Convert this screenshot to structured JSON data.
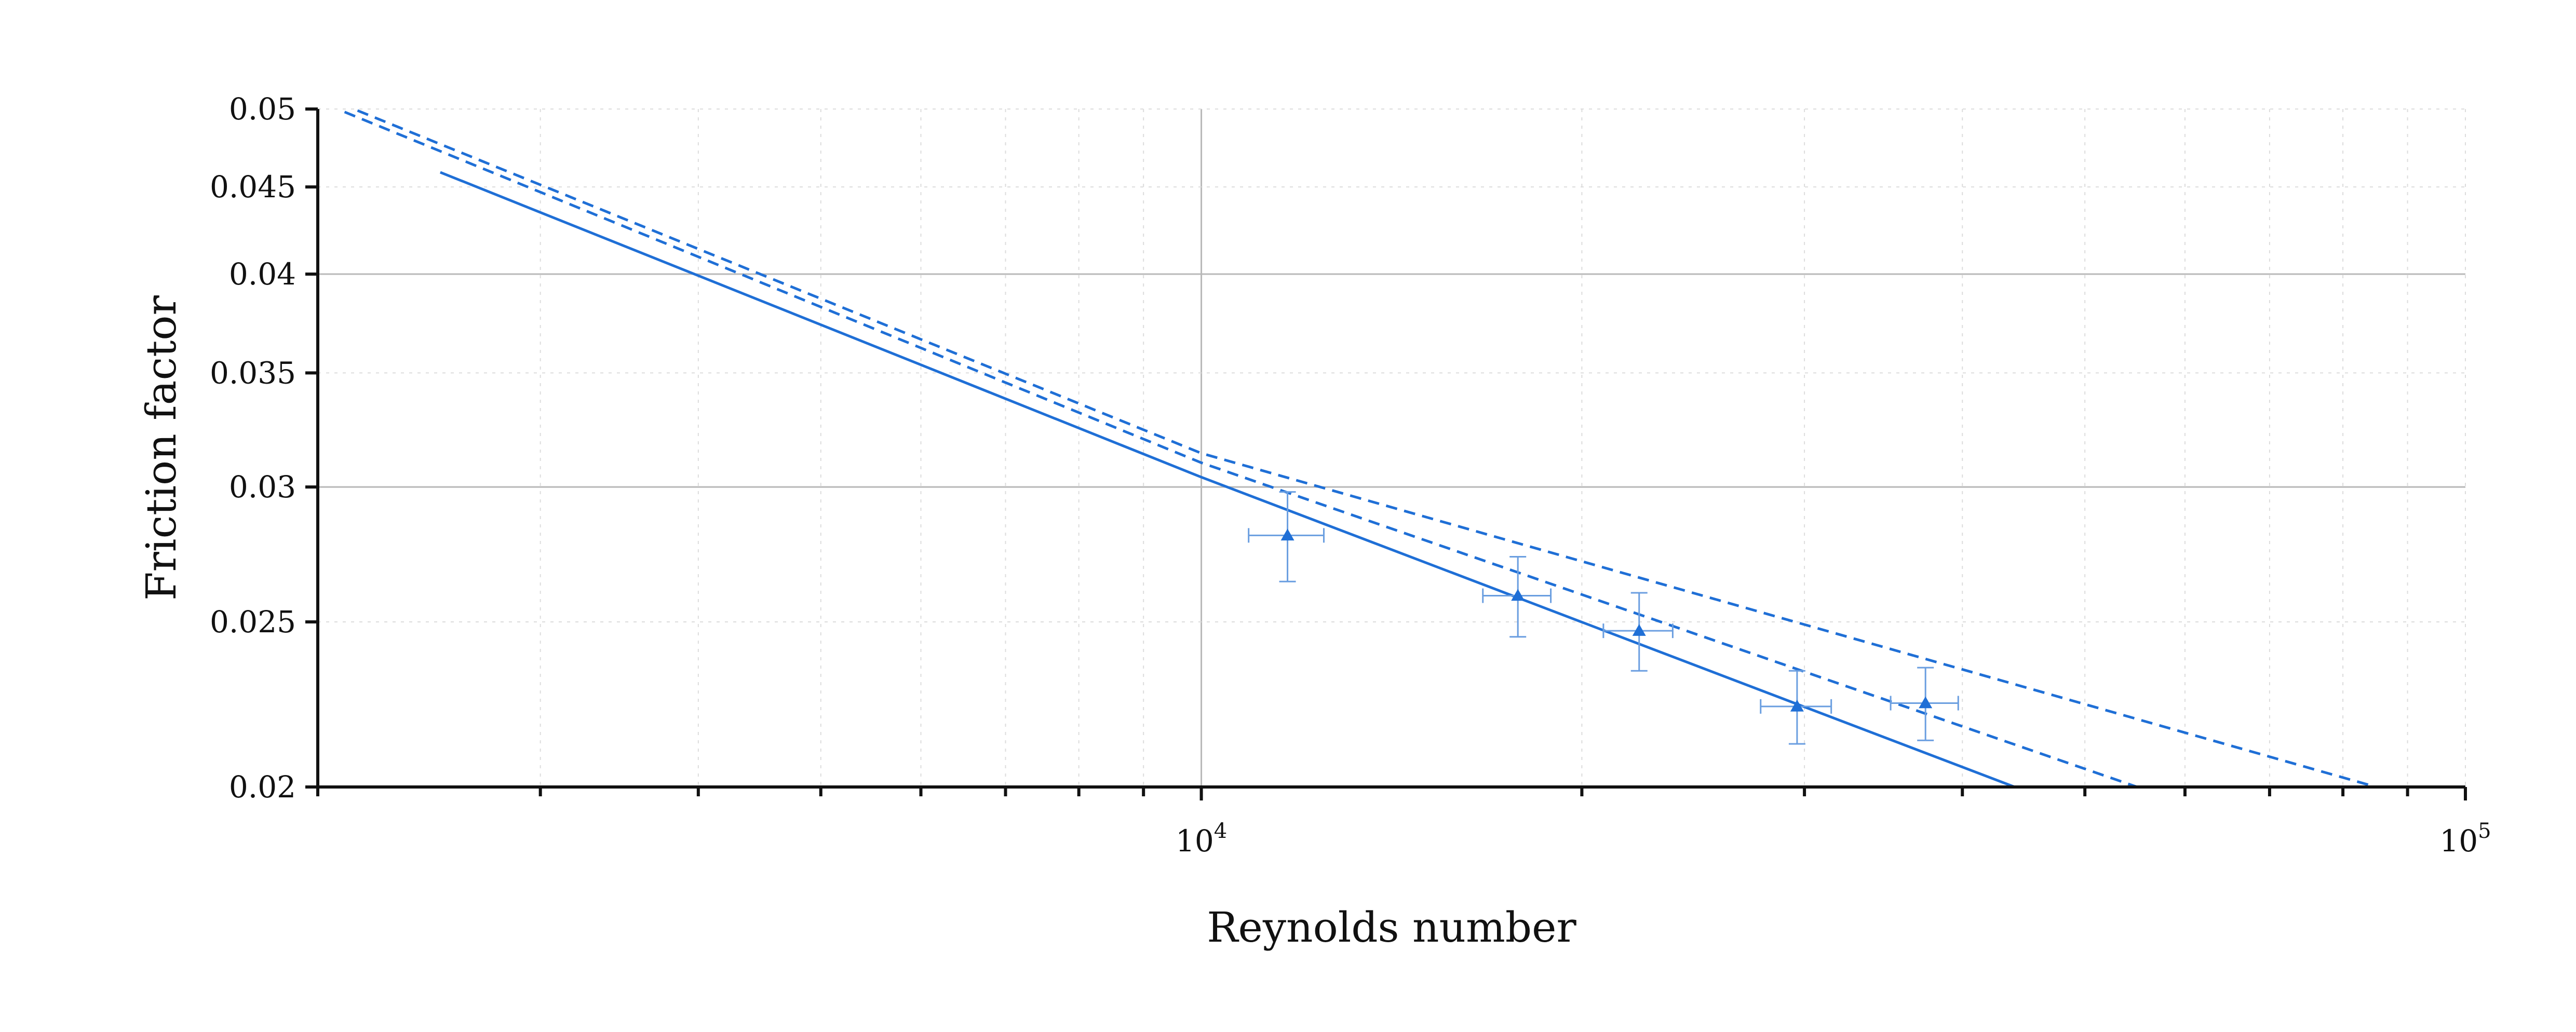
{
  "chart_data": {
    "type": "line",
    "title": "",
    "xlabel": "Reynolds number",
    "ylabel": "Friction factor",
    "xscale": "log",
    "yscale": "log",
    "xlim": [
      2000,
      100000
    ],
    "ylim": [
      0.02,
      0.05
    ],
    "x_ticks": [
      {
        "value": 10000,
        "base": "10",
        "exp": "4"
      },
      {
        "value": 100000,
        "base": "10",
        "exp": "5"
      }
    ],
    "y_ticks": [
      {
        "value": 0.02,
        "label": "0.02"
      },
      {
        "value": 0.025,
        "label": "0.025"
      },
      {
        "value": 0.03,
        "label": "0.03"
      },
      {
        "value": 0.035,
        "label": "0.035"
      },
      {
        "value": 0.04,
        "label": "0.04"
      },
      {
        "value": 0.045,
        "label": "0.045"
      },
      {
        "value": 0.05,
        "label": "0.05"
      }
    ],
    "major_grid_y": [
      0.03,
      0.04
    ],
    "major_grid_x": [
      10000
    ],
    "grid": true,
    "colors": {
      "series": "#1f6fd6",
      "errorbar": "#6a9ee0"
    },
    "series": [
      {
        "style": "solid",
        "x": [
          2500,
          10000,
          44000
        ],
        "y": [
          0.0459,
          0.0304,
          0.02
        ]
      },
      {
        "style": "dashed",
        "x": [
          2100,
          10000,
          55000
        ],
        "y": [
          0.0498,
          0.031,
          0.02
        ]
      },
      {
        "style": "dashed",
        "x": [
          2150,
          10000,
          85000
        ],
        "y": [
          0.0499,
          0.0314,
          0.02
        ]
      }
    ],
    "points": [
      {
        "x": 11700,
        "y": 0.0281,
        "xerr": 800,
        "yerr_low": 0.0017,
        "yerr_high": 0.0017
      },
      {
        "x": 17800,
        "y": 0.0259,
        "xerr": 1100,
        "yerr_low": 0.0014,
        "yerr_high": 0.0014
      },
      {
        "x": 22200,
        "y": 0.0247,
        "xerr": 1400,
        "yerr_low": 0.0013,
        "yerr_high": 0.0013
      },
      {
        "x": 29600,
        "y": 0.0223,
        "xerr": 1900,
        "yerr_low": 0.0011,
        "yerr_high": 0.0011
      },
      {
        "x": 37400,
        "y": 0.0224,
        "xerr": 2300,
        "yerr_low": 0.0011,
        "yerr_high": 0.0011
      }
    ]
  }
}
